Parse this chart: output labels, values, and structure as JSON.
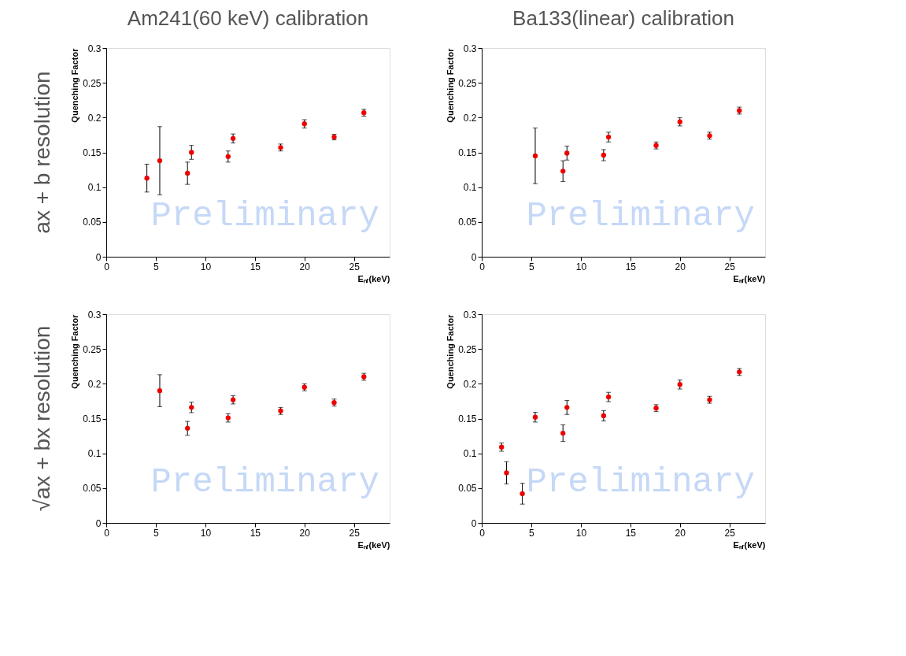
{
  "chart_data": [
    {
      "type": "scatter",
      "title": "Am241(60 keV) calibration",
      "subtitle": "ax + b resolution",
      "xlabel": "Eₙᵣ(keV)",
      "ylabel": "Quenching Factor",
      "annotations": [
        "Preliminary"
      ],
      "marker": "circle",
      "grid": false,
      "xlim": [
        0,
        28.6
      ],
      "xticks": [
        0,
        5,
        10,
        15,
        20,
        25
      ],
      "ylim": [
        0,
        0.3
      ],
      "yticks": [
        0,
        0.05,
        0.1,
        0.15,
        0.2,
        0.25,
        0.3
      ],
      "x": [
        4.1,
        5.4,
        8.2,
        8.6,
        12.3,
        12.8,
        17.6,
        20,
        23,
        26
      ],
      "series": [
        {
          "color": "#ee0000",
          "values": [
            0.113,
            0.138,
            0.12,
            0.15,
            0.144,
            0.17,
            0.157,
            0.191,
            0.172,
            0.207
          ],
          "errors": [
            0.02,
            0.049,
            0.016,
            0.01,
            0.008,
            0.0065,
            0.005,
            0.006,
            0.004,
            0.005
          ]
        }
      ]
    },
    {
      "type": "scatter",
      "title": "Ba133(linear) calibration",
      "xlabel": "Eₙᵣ(keV)",
      "ylabel": "Quenching Factor",
      "annotations": [
        "Preliminary"
      ],
      "marker": "circle",
      "grid": false,
      "xlim": [
        0,
        28.6
      ],
      "xticks": [
        0,
        5,
        10,
        15,
        20,
        25
      ],
      "ylim": [
        0,
        0.3
      ],
      "yticks": [
        0,
        0.05,
        0.1,
        0.15,
        0.2,
        0.25,
        0.3
      ],
      "x": [
        5.4,
        8.2,
        8.6,
        12.3,
        12.8,
        17.6,
        20,
        23,
        26
      ],
      "series": [
        {
          "color": "#ee0000",
          "values": [
            0.145,
            0.123,
            0.149,
            0.146,
            0.172,
            0.16,
            0.194,
            0.174,
            0.21
          ],
          "errors": [
            0.04,
            0.015,
            0.01,
            0.008,
            0.007,
            0.005,
            0.006,
            0.005,
            0.005
          ]
        }
      ]
    },
    {
      "type": "scatter",
      "subtitle": "√ax + bx resolution",
      "xlabel": "Eₙᵣ(keV)",
      "ylabel": "Quenching Factor",
      "annotations": [
        "Preliminary"
      ],
      "marker": "circle",
      "grid": false,
      "xlim": [
        0,
        28.6
      ],
      "xticks": [
        0,
        5,
        10,
        15,
        20,
        25
      ],
      "ylim": [
        0,
        0.3
      ],
      "yticks": [
        0,
        0.05,
        0.1,
        0.15,
        0.2,
        0.25,
        0.3
      ],
      "x": [
        5.4,
        8.2,
        8.6,
        12.3,
        12.8,
        17.6,
        20,
        23,
        26
      ],
      "series": [
        {
          "color": "#ee0000",
          "values": [
            0.19,
            0.136,
            0.166,
            0.151,
            0.177,
            0.161,
            0.195,
            0.173,
            0.21
          ],
          "errors": [
            0.023,
            0.01,
            0.0075,
            0.006,
            0.006,
            0.005,
            0.005,
            0.005,
            0.005
          ]
        }
      ]
    },
    {
      "type": "scatter",
      "xlabel": "Eₙᵣ(keV)",
      "ylabel": "Quenching Factor",
      "annotations": [
        "Preliminary"
      ],
      "marker": "circle",
      "grid": false,
      "xlim": [
        0,
        28.6
      ],
      "xticks": [
        0,
        5,
        10,
        15,
        20,
        25
      ],
      "ylim": [
        0,
        0.3
      ],
      "yticks": [
        0,
        0.05,
        0.1,
        0.15,
        0.2,
        0.25,
        0.3
      ],
      "x": [
        2.0,
        2.5,
        4.1,
        5.4,
        8.2,
        8.6,
        12.3,
        12.8,
        17.6,
        20,
        23,
        26
      ],
      "series": [
        {
          "color": "#ee0000",
          "values": [
            0.109,
            0.072,
            0.042,
            0.152,
            0.129,
            0.166,
            0.154,
            0.181,
            0.165,
            0.199,
            0.177,
            0.217
          ],
          "errors": [
            0.006,
            0.016,
            0.015,
            0.007,
            0.012,
            0.01,
            0.0075,
            0.0067,
            0.005,
            0.0065,
            0.005,
            0.005
          ]
        }
      ]
    }
  ]
}
